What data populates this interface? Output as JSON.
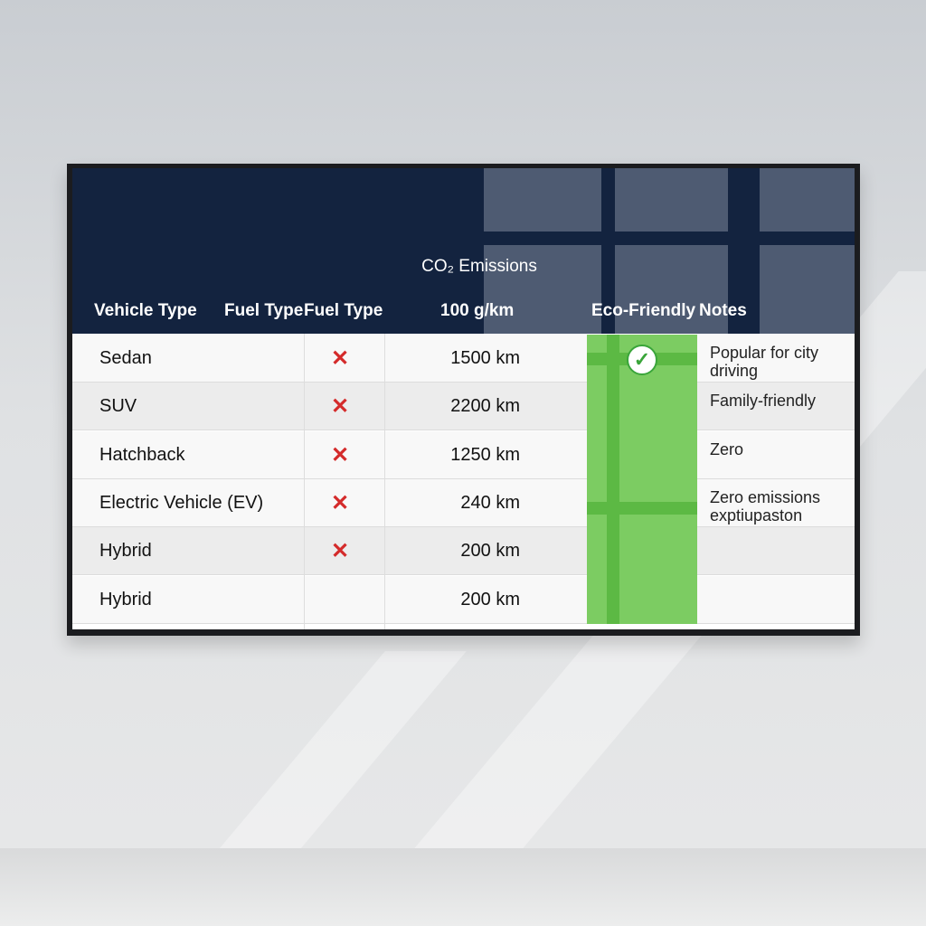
{
  "table": {
    "group_header": "CO₂ Emissions",
    "headers": [
      "Vehicle Type",
      "Fuel Type",
      "Fuel Type",
      "100 g/km",
      "Eco-Friendly",
      "Notes"
    ],
    "rows": [
      {
        "vehicle": "Sedan",
        "fuel_mark": "✕",
        "distance": "1500 km",
        "eco": "✓",
        "notes": "Popular for city driving"
      },
      {
        "vehicle": "SUV",
        "fuel_mark": "✕",
        "distance": "2200 km",
        "eco": "",
        "notes": "Family-friendly"
      },
      {
        "vehicle": "Hatchback",
        "fuel_mark": "✕",
        "distance": "1250 km",
        "eco": "",
        "notes": "Zero"
      },
      {
        "vehicle": "Electric Vehicle (EV)",
        "fuel_mark": "✕",
        "distance": "240 km",
        "eco": "",
        "notes": "Zero emissions exptiupaston"
      },
      {
        "vehicle": "Hybrid",
        "fuel_mark": "✕",
        "distance": "200 km",
        "eco": "",
        "notes": ""
      },
      {
        "vehicle": "Hybrid",
        "fuel_mark": "",
        "distance": "200 km",
        "eco": "",
        "notes": ""
      }
    ]
  },
  "colors": {
    "header": "#13233f",
    "eco_column": "#7ccc62",
    "cross": "#d42b2b",
    "check": "#3aa53a"
  }
}
